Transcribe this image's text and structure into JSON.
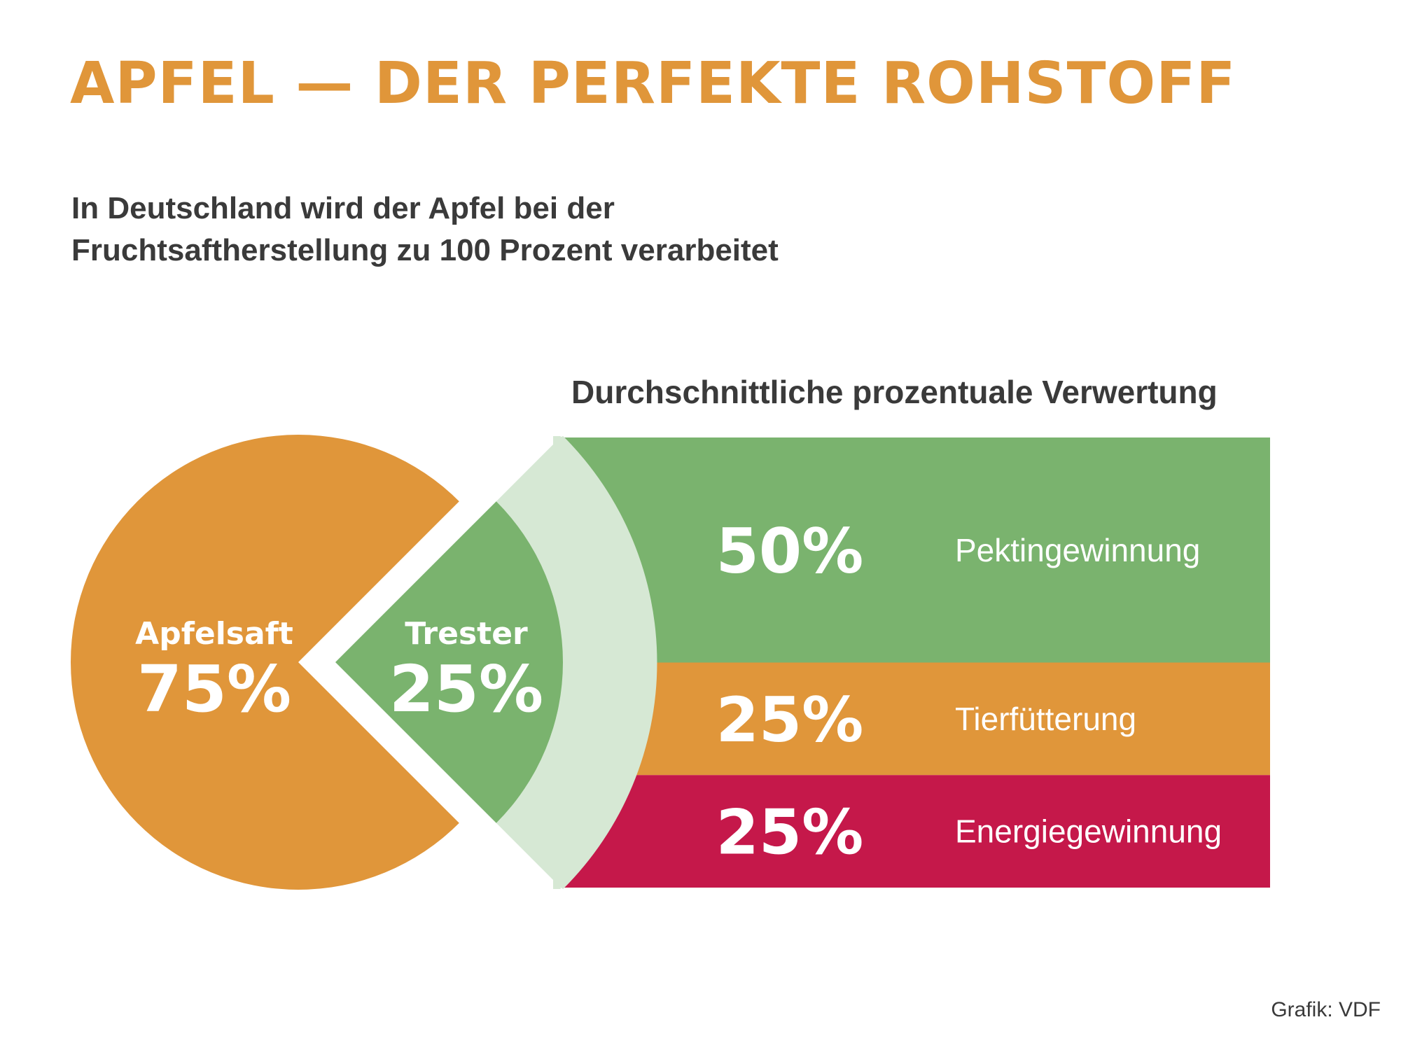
{
  "colors": {
    "orange": "#E0963A",
    "green": "#7AB36E",
    "light_green": "#D6E8D4",
    "crimson": "#C5184A",
    "text_dark": "#3A3A3A",
    "title": "#E0963A"
  },
  "header": {
    "title": "APFEL — DER PERFEKTE ROHSTOFF",
    "subtitle_lines": [
      "In Deutschland wird der Apfel bei der",
      "Fruchtsaftherstellung zu 100 Prozent verarbeitet"
    ]
  },
  "chart_data": [
    {
      "type": "pie",
      "slices": [
        {
          "label": "Apfelsaft",
          "value": 75,
          "value_label": "75%",
          "color": "#E0963A"
        },
        {
          "label": "Trester",
          "value": 25,
          "value_label": "25%",
          "color": "#7AB36E"
        }
      ]
    },
    {
      "type": "bar",
      "title": "Durchschnittliche prozentuale Verwertung",
      "orientation": "stacked",
      "categories": [
        "Pektingewinnung",
        "Tierfütterung",
        "Energiegewinnung"
      ],
      "values": [
        50,
        25,
        25
      ],
      "value_labels": [
        "50%",
        "25%",
        "25%"
      ],
      "colors": [
        "#7AB36E",
        "#E0963A",
        "#C5184A"
      ]
    }
  ],
  "footer": {
    "credit": "Grafik: VDF"
  }
}
